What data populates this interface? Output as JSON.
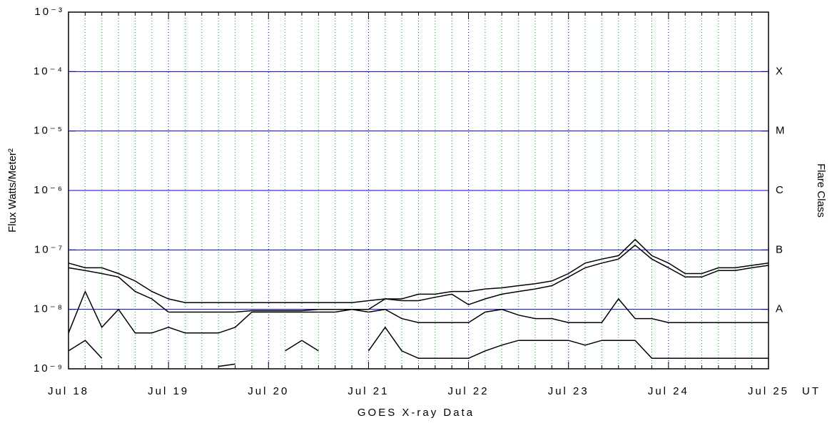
{
  "chart_data": {
    "type": "line",
    "title": "GOES X-ray Data",
    "x_label": "UT",
    "y_label": "Flux Watts/Meter²",
    "y2_label": "Flare Class",
    "log_scale": true,
    "grid": true,
    "categories": [
      "Jul 18",
      null,
      null,
      null,
      null,
      null,
      "Jul 19",
      null,
      null,
      null,
      null,
      null,
      "Jul 20",
      null,
      null,
      null,
      null,
      null,
      "Jul 21",
      null,
      null,
      null,
      null,
      null,
      "Jul 22",
      null,
      null,
      null,
      null,
      null,
      "Jul 23",
      null,
      null,
      null,
      null,
      null,
      "Jul 24",
      null,
      null,
      null,
      null,
      null,
      "Jul 25"
    ],
    "ylim": [
      1e-09,
      0.001
    ],
    "yticks": [
      {
        "value": 1e-09,
        "label": "10⁻⁹"
      },
      {
        "value": 1e-08,
        "label": "10⁻⁸"
      },
      {
        "value": 1e-07,
        "label": "10⁻⁷"
      },
      {
        "value": 1e-06,
        "label": "10⁻⁶"
      },
      {
        "value": 1e-05,
        "label": "10⁻⁵"
      },
      {
        "value": 0.0001,
        "label": "10⁻⁴"
      },
      {
        "value": 0.001,
        "label": "10⁻³"
      }
    ],
    "y2lim": [
      1e-09,
      0.001
    ],
    "y2ticks": [
      {
        "value": 1e-08,
        "label": "A"
      },
      {
        "value": 1e-07,
        "label": "B"
      },
      {
        "value": 1e-06,
        "label": "C"
      },
      {
        "value": 1e-05,
        "label": "M"
      },
      {
        "value": 0.0001,
        "label": "X"
      }
    ],
    "grid_color": "#0000cc",
    "minor_grid_color": "#00aa00",
    "series": [
      {
        "color": "#000000",
        "values": [
          6e-08,
          5e-08,
          5e-08,
          4e-08,
          3e-08,
          2e-08,
          1.5e-08,
          1.3e-08,
          1.3e-08,
          1.3e-08,
          1.3e-08,
          1.3e-08,
          1.3e-08,
          1.3e-08,
          1.3e-08,
          1.3e-08,
          1.3e-08,
          1.3e-08,
          1.4e-08,
          1.5e-08,
          1.5e-08,
          1.8e-08,
          1.8e-08,
          2e-08,
          2e-08,
          2.2e-08,
          2.3e-08,
          2.5e-08,
          2.7e-08,
          3e-08,
          4e-08,
          6e-08,
          7e-08,
          8e-08,
          1.5e-07,
          8e-08,
          6e-08,
          4e-08,
          4e-08,
          5e-08,
          5e-08,
          5.5e-08,
          6e-08
        ]
      },
      {
        "color": "#000000",
        "values": [
          5e-08,
          4.5e-08,
          4e-08,
          3.5e-08,
          2e-08,
          1.5e-08,
          9e-09,
          9e-09,
          9e-09,
          9e-09,
          9e-09,
          9.5e-09,
          9.5e-09,
          9.5e-09,
          9.5e-09,
          1e-08,
          1e-08,
          1e-08,
          1e-08,
          1.5e-08,
          1.4e-08,
          1.4e-08,
          1.6e-08,
          1.8e-08,
          1.2e-08,
          1.5e-08,
          1.8e-08,
          2e-08,
          2.2e-08,
          2.5e-08,
          3.5e-08,
          5e-08,
          6e-08,
          7e-08,
          1.2e-07,
          7e-08,
          5e-08,
          3.5e-08,
          3.5e-08,
          4.5e-08,
          4.5e-08,
          5e-08,
          5.5e-08
        ]
      },
      {
        "color": "#000000",
        "values": [
          4e-09,
          2e-08,
          5e-09,
          1e-08,
          4e-09,
          4e-09,
          5e-09,
          4e-09,
          4e-09,
          4e-09,
          5e-09,
          9e-09,
          9e-09,
          9e-09,
          9e-09,
          9e-09,
          9e-09,
          1e-08,
          9e-09,
          1e-08,
          7e-09,
          6e-09,
          6e-09,
          6e-09,
          6e-09,
          9e-09,
          1e-08,
          8e-09,
          7e-09,
          7e-09,
          6e-09,
          6e-09,
          6e-09,
          1.5e-08,
          7e-09,
          7e-09,
          6e-09,
          6e-09,
          6e-09,
          6e-09,
          6e-09,
          6e-09,
          6e-09
        ]
      },
      {
        "color": "#000000",
        "values": [
          2e-09,
          3e-09,
          1.5e-09,
          null,
          null,
          null,
          null,
          null,
          null,
          1.1e-09,
          1.2e-09,
          null,
          null,
          2e-09,
          3e-09,
          2e-09,
          null,
          null,
          2e-09,
          5e-09,
          2e-09,
          1.5e-09,
          1.5e-09,
          1.5e-09,
          1.5e-09,
          2e-09,
          2.5e-09,
          3e-09,
          3e-09,
          3e-09,
          3e-09,
          2.5e-09,
          3e-09,
          3e-09,
          3e-09,
          1.5e-09,
          1.5e-09,
          1.5e-09,
          1.5e-09,
          1.5e-09,
          1.5e-09,
          1.5e-09,
          1.5e-09
        ]
      }
    ]
  }
}
